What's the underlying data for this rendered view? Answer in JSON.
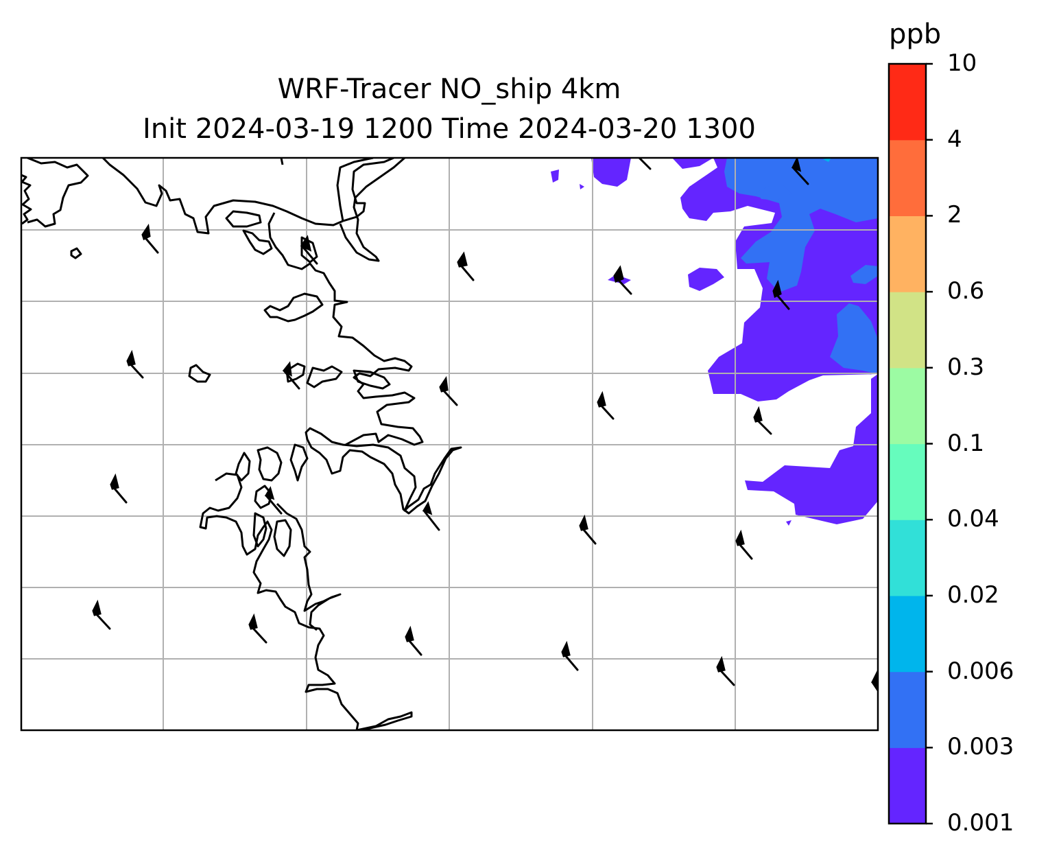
{
  "title_line_1": "WRF-Tracer NO_ship 4km",
  "title_line_2": "Init 2024-03-19 1200 Time 2024-03-20 1300",
  "colorbar": {
    "unit": "ppb",
    "levels": [
      "0.001",
      "0.003",
      "0.006",
      "0.02",
      "0.04",
      "0.1",
      "0.3",
      "0.6",
      "2",
      "4",
      "10"
    ],
    "colors": [
      "#6425ff",
      "#3271f4",
      "#00b5ec",
      "#31e0d8",
      "#66fcbd",
      "#9cfba3",
      "#d1e386",
      "#ffb261",
      "#ff6d3b",
      "#ff2a16"
    ]
  },
  "map": {
    "gridlines": true,
    "gridline_color": "#b0b0b0",
    "coastline_color": "#000000",
    "layers": [
      "coastlines",
      "gridlines",
      "tracer-shading",
      "wind-barbs"
    ]
  }
}
